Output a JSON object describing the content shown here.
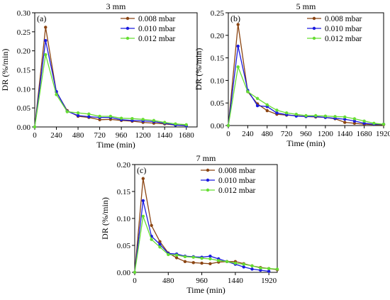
{
  "colors": {
    "0.008 mbar": "#8B4513",
    "0.010 mbar": "#1a1adf",
    "0.012 mbar": "#66dd33"
  },
  "chart_data": [
    {
      "type": "line",
      "title": "3 mm",
      "panel_label": "(a)",
      "xlabel": "Time (min)",
      "ylabel": "DR (%/min)",
      "xlim": [
        0,
        1800
      ],
      "ylim": [
        0,
        0.3
      ],
      "xticks": [
        0,
        240,
        480,
        720,
        960,
        1200,
        1440,
        1680
      ],
      "yticks": [
        0.0,
        0.05,
        0.1,
        0.15,
        0.2,
        0.25,
        0.3
      ],
      "ytick_decimals": 2,
      "legend_position": "top-right",
      "series": [
        {
          "name": "0.008 mbar",
          "x": [
            0,
            120,
            240,
            360,
            480,
            600,
            720,
            840,
            960,
            1080,
            1200,
            1320,
            1440,
            1560,
            1680
          ],
          "y": [
            0,
            0.262,
            0.092,
            0.043,
            0.028,
            0.025,
            0.019,
            0.02,
            0.017,
            0.015,
            0.012,
            0.01,
            0.008,
            0.005,
            0.004
          ]
        },
        {
          "name": "0.010 mbar",
          "x": [
            0,
            120,
            240,
            360,
            480,
            600,
            720,
            840,
            960,
            1080,
            1200,
            1320,
            1440,
            1560,
            1680
          ],
          "y": [
            0,
            0.227,
            0.093,
            0.041,
            0.03,
            0.027,
            0.025,
            0.025,
            0.019,
            0.017,
            0.016,
            0.014,
            0.01,
            0.005,
            0.003
          ]
        },
        {
          "name": "0.012 mbar",
          "x": [
            0,
            120,
            240,
            360,
            480,
            600,
            720,
            840,
            960,
            1080,
            1200,
            1320,
            1440,
            1560,
            1680
          ],
          "y": [
            0,
            0.19,
            0.085,
            0.04,
            0.037,
            0.034,
            0.028,
            0.028,
            0.023,
            0.022,
            0.02,
            0.017,
            0.012,
            0.008,
            0.006
          ]
        }
      ]
    },
    {
      "type": "line",
      "title": "5 mm",
      "panel_label": "(b)",
      "xlabel": "Time (min)",
      "ylabel": "DR (%/min)",
      "xlim": [
        0,
        1920
      ],
      "ylim": [
        0,
        0.25
      ],
      "xticks": [
        0,
        240,
        480,
        720,
        960,
        1200,
        1440,
        1680,
        1920
      ],
      "yticks": [
        0.0,
        0.05,
        0.1,
        0.15,
        0.2,
        0.25
      ],
      "ytick_decimals": 2,
      "legend_position": "top-right",
      "series": [
        {
          "name": "0.008 mbar",
          "x": [
            0,
            120,
            240,
            360,
            480,
            600,
            720,
            840,
            960,
            1080,
            1200,
            1320,
            1440,
            1560,
            1680,
            1800,
            1920
          ],
          "y": [
            0,
            0.224,
            0.075,
            0.048,
            0.033,
            0.025,
            0.023,
            0.022,
            0.02,
            0.019,
            0.018,
            0.015,
            0.007,
            0.005,
            0.003,
            0.002,
            0.002
          ]
        },
        {
          "name": "0.010 mbar",
          "x": [
            0,
            120,
            240,
            360,
            480,
            600,
            720,
            840,
            960,
            1080,
            1200,
            1320,
            1440,
            1560,
            1680,
            1800,
            1920
          ],
          "y": [
            0,
            0.176,
            0.078,
            0.044,
            0.042,
            0.028,
            0.024,
            0.021,
            0.02,
            0.02,
            0.018,
            0.016,
            0.014,
            0.01,
            0.005,
            0.003,
            0.003
          ]
        },
        {
          "name": "0.012 mbar",
          "x": [
            0,
            120,
            240,
            360,
            480,
            600,
            720,
            840,
            960,
            1080,
            1200,
            1320,
            1440,
            1560,
            1680,
            1800,
            1920
          ],
          "y": [
            0,
            0.13,
            0.075,
            0.06,
            0.046,
            0.034,
            0.028,
            0.025,
            0.022,
            0.022,
            0.021,
            0.02,
            0.019,
            0.015,
            0.01,
            0.005,
            0.003
          ]
        }
      ]
    },
    {
      "type": "line",
      "title": "7 mm",
      "panel_label": "(c)",
      "xlabel": "Time (min)",
      "ylabel": "DR (%/min)",
      "xlim": [
        0,
        2040
      ],
      "ylim": [
        0,
        0.2
      ],
      "xticks": [
        0,
        480,
        960,
        1440,
        1920
      ],
      "yticks": [
        0.0,
        0.05,
        0.1,
        0.15,
        0.2
      ],
      "ytick_decimals": 2,
      "legend_position": "top-right",
      "series": [
        {
          "name": "0.008 mbar",
          "x": [
            0,
            120,
            240,
            360,
            480,
            600,
            720,
            840,
            960,
            1080,
            1200,
            1320,
            1440,
            1560,
            1680,
            1800,
            1920,
            2040
          ],
          "y": [
            0,
            0.174,
            0.087,
            0.057,
            0.036,
            0.027,
            0.02,
            0.018,
            0.017,
            0.016,
            0.019,
            0.02,
            0.02,
            0.016,
            0.012,
            0.009,
            0.007,
            0.005
          ]
        },
        {
          "name": "0.010 mbar",
          "x": [
            0,
            120,
            240,
            360,
            480,
            600,
            720,
            840,
            960,
            1080,
            1200,
            1320,
            1440,
            1560,
            1680,
            1800,
            1920
          ],
          "y": [
            0,
            0.133,
            0.067,
            0.052,
            0.035,
            0.034,
            0.03,
            0.029,
            0.028,
            0.03,
            0.025,
            0.02,
            0.015,
            0.01,
            0.006,
            0.004,
            0.002
          ]
        },
        {
          "name": "0.012 mbar",
          "x": [
            0,
            120,
            240,
            360,
            480,
            600,
            720,
            840,
            960,
            1080,
            1200,
            1320,
            1440,
            1560,
            1680,
            1800,
            1920,
            2040
          ],
          "y": [
            0,
            0.104,
            0.061,
            0.047,
            0.033,
            0.032,
            0.029,
            0.028,
            0.026,
            0.025,
            0.022,
            0.02,
            0.017,
            0.015,
            0.012,
            0.008,
            0.007,
            0.006
          ]
        }
      ]
    }
  ]
}
